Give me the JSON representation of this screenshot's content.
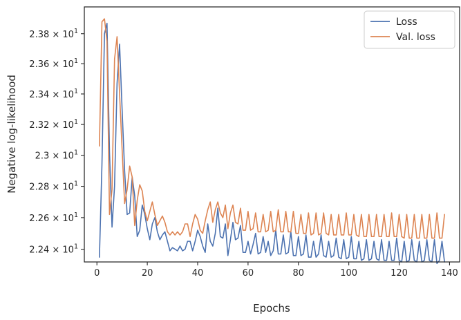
{
  "chart_data": {
    "type": "line",
    "title": "",
    "xlabel": "Epochs",
    "ylabel": "Negative log-likelihood",
    "xlim": [
      -5,
      144
    ],
    "ylim": [
      22.32,
      23.98
    ],
    "y_scale": "log",
    "x_ticks": [
      0,
      20,
      40,
      60,
      80,
      100,
      120,
      140
    ],
    "x_tick_labels": [
      "0",
      "20",
      "40",
      "60",
      "80",
      "100",
      "120",
      "140"
    ],
    "y_ticks": [
      22.4,
      22.6,
      22.8,
      23.0,
      23.2,
      23.4,
      23.6,
      23.8
    ],
    "y_tick_labels": [
      {
        "mantissa": "2.24",
        "exp": "1"
      },
      {
        "mantissa": "2.26",
        "exp": "1"
      },
      {
        "mantissa": "2.28",
        "exp": "1"
      },
      {
        "mantissa": "2.3",
        "exp": "1"
      },
      {
        "mantissa": "2.32",
        "exp": "1"
      },
      {
        "mantissa": "2.34",
        "exp": "1"
      },
      {
        "mantissa": "2.36",
        "exp": "1"
      },
      {
        "mantissa": "2.38",
        "exp": "1"
      }
    ],
    "grid": false,
    "legend_position": "top-right",
    "x": [
      1,
      2,
      3,
      4,
      5,
      6,
      7,
      8,
      9,
      10,
      11,
      12,
      13,
      14,
      15,
      16,
      17,
      18,
      19,
      20,
      21,
      22,
      23,
      24,
      25,
      26,
      27,
      28,
      29,
      30,
      31,
      32,
      33,
      34,
      35,
      36,
      37,
      38,
      39,
      40,
      41,
      42,
      43,
      44,
      45,
      46,
      47,
      48,
      49,
      50,
      51,
      52,
      53,
      54,
      55,
      56,
      57,
      58,
      59,
      60,
      61,
      62,
      63,
      64,
      65,
      66,
      67,
      68,
      69,
      70,
      71,
      72,
      73,
      74,
      75,
      76,
      77,
      78,
      79,
      80,
      81,
      82,
      83,
      84,
      85,
      86,
      87,
      88,
      89,
      90,
      91,
      92,
      93,
      94,
      95,
      96,
      97,
      98,
      99,
      100,
      101,
      102,
      103,
      104,
      105,
      106,
      107,
      108,
      109,
      110,
      111,
      112,
      113,
      114,
      115,
      116,
      117,
      118,
      119,
      120,
      121,
      122,
      123,
      124,
      125,
      126,
      127,
      128,
      129,
      130,
      131,
      132,
      133,
      134,
      135,
      136,
      137,
      138
    ],
    "series": [
      {
        "name": "Loss",
        "color": "#4c72b0",
        "values": [
          22.35,
          22.94,
          23.8,
          23.87,
          23.02,
          22.54,
          22.8,
          23.47,
          23.73,
          23.3,
          22.9,
          22.62,
          22.63,
          22.86,
          22.74,
          22.48,
          22.52,
          22.68,
          22.62,
          22.53,
          22.46,
          22.56,
          22.6,
          22.51,
          22.46,
          22.49,
          22.51,
          22.45,
          22.39,
          22.41,
          22.4,
          22.39,
          22.42,
          22.39,
          22.4,
          22.45,
          22.45,
          22.39,
          22.45,
          22.52,
          22.48,
          22.42,
          22.38,
          22.56,
          22.45,
          22.42,
          22.5,
          22.66,
          22.48,
          22.47,
          22.56,
          22.36,
          22.46,
          22.57,
          22.46,
          22.47,
          22.55,
          22.38,
          22.38,
          22.45,
          22.37,
          22.43,
          22.5,
          22.37,
          22.38,
          22.48,
          22.38,
          22.45,
          22.36,
          22.39,
          22.52,
          22.37,
          22.37,
          22.49,
          22.37,
          22.38,
          22.51,
          22.36,
          22.36,
          22.48,
          22.36,
          22.37,
          22.49,
          22.35,
          22.35,
          22.45,
          22.35,
          22.37,
          22.49,
          22.36,
          22.35,
          22.45,
          22.35,
          22.36,
          22.47,
          22.35,
          22.34,
          22.46,
          22.34,
          22.35,
          22.48,
          22.34,
          22.34,
          22.45,
          22.33,
          22.34,
          22.46,
          22.33,
          22.34,
          22.45,
          22.34,
          22.33,
          22.46,
          22.33,
          22.33,
          22.45,
          22.33,
          22.33,
          22.47,
          22.33,
          22.32,
          22.45,
          22.32,
          22.33,
          22.46,
          22.33,
          22.32,
          22.45,
          22.32,
          22.33,
          22.46,
          22.33,
          22.32,
          22.46,
          22.31,
          22.33,
          22.45,
          22.32
        ]
      },
      {
        "name": "Val. loss",
        "color": "#dd8452",
        "values": [
          23.06,
          23.88,
          23.9,
          23.75,
          22.62,
          22.78,
          23.63,
          23.78,
          23.4,
          23.04,
          22.69,
          22.78,
          22.93,
          22.86,
          22.55,
          22.71,
          22.81,
          22.77,
          22.64,
          22.58,
          22.64,
          22.7,
          22.62,
          22.55,
          22.58,
          22.61,
          22.57,
          22.51,
          22.49,
          22.51,
          22.49,
          22.51,
          22.49,
          22.51,
          22.56,
          22.56,
          22.48,
          22.56,
          22.62,
          22.59,
          22.52,
          22.5,
          22.58,
          22.65,
          22.7,
          22.57,
          22.65,
          22.7,
          22.63,
          22.6,
          22.68,
          22.53,
          22.63,
          22.68,
          22.57,
          22.56,
          22.66,
          22.52,
          22.52,
          22.64,
          22.52,
          22.53,
          22.63,
          22.51,
          22.51,
          22.62,
          22.51,
          22.52,
          22.64,
          22.51,
          22.52,
          22.65,
          22.51,
          22.51,
          22.64,
          22.51,
          22.51,
          22.64,
          22.5,
          22.5,
          22.62,
          22.5,
          22.5,
          22.63,
          22.49,
          22.5,
          22.63,
          22.49,
          22.5,
          22.63,
          22.5,
          22.49,
          22.62,
          22.49,
          22.49,
          22.62,
          22.49,
          22.49,
          22.63,
          22.49,
          22.49,
          22.62,
          22.49,
          22.48,
          22.62,
          22.48,
          22.48,
          22.62,
          22.48,
          22.48,
          22.62,
          22.48,
          22.48,
          22.62,
          22.48,
          22.48,
          22.63,
          22.48,
          22.48,
          22.62,
          22.48,
          22.47,
          22.62,
          22.47,
          22.47,
          22.62,
          22.47,
          22.47,
          22.62,
          22.47,
          22.47,
          22.62,
          22.47,
          22.47,
          22.63,
          22.47,
          22.47,
          22.62
        ]
      }
    ]
  }
}
